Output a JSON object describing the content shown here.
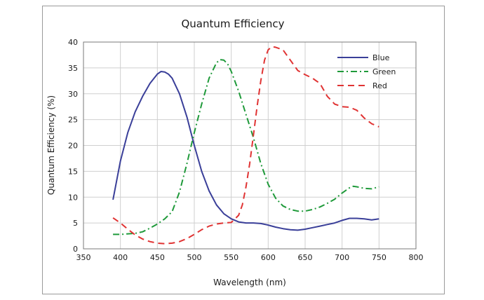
{
  "chart_data": {
    "type": "line",
    "title": "Quantum Efficiency",
    "xlabel": "Wavelength (nm)",
    "ylabel": "Quantum Efficiency (%)",
    "xlim": [
      350,
      800
    ],
    "ylim": [
      0,
      40
    ],
    "xticks": [
      350,
      400,
      450,
      500,
      550,
      600,
      650,
      700,
      750,
      800
    ],
    "yticks": [
      0,
      5,
      10,
      15,
      20,
      25,
      30,
      35,
      40
    ],
    "grid": true,
    "legend_position": "top-right",
    "series": [
      {
        "name": "Blue",
        "color": "#3a3f99",
        "dash": "solid",
        "x": [
          390,
          400,
          410,
          420,
          430,
          440,
          450,
          455,
          460,
          465,
          470,
          480,
          490,
          500,
          510,
          520,
          530,
          540,
          550,
          560,
          570,
          580,
          590,
          600,
          610,
          620,
          630,
          640,
          650,
          660,
          670,
          680,
          690,
          700,
          710,
          720,
          730,
          740,
          750
        ],
        "y": [
          9.5,
          17,
          22.5,
          26.5,
          29.5,
          32,
          33.8,
          34.3,
          34.2,
          33.8,
          33,
          30,
          25.5,
          20,
          15,
          11.2,
          8.5,
          6.8,
          5.8,
          5.2,
          5.0,
          5.0,
          4.9,
          4.6,
          4.2,
          3.9,
          3.7,
          3.6,
          3.8,
          4.1,
          4.4,
          4.7,
          5.0,
          5.5,
          5.9,
          5.9,
          5.8,
          5.6,
          5.8
        ]
      },
      {
        "name": "Green",
        "color": "#1f9a3a",
        "dash": "dashdot",
        "x": [
          390,
          400,
          410,
          420,
          430,
          440,
          450,
          460,
          470,
          480,
          490,
          500,
          510,
          520,
          530,
          535,
          540,
          545,
          550,
          560,
          570,
          580,
          590,
          600,
          610,
          620,
          630,
          640,
          650,
          660,
          670,
          680,
          690,
          700,
          710,
          715,
          720,
          730,
          740,
          750
        ],
        "y": [
          2.8,
          2.8,
          2.9,
          3.0,
          3.3,
          4.0,
          4.8,
          5.8,
          7.2,
          11,
          16.5,
          22.5,
          28,
          33,
          36,
          36.6,
          36.5,
          35.8,
          34.3,
          30.5,
          26,
          21.5,
          16.5,
          12.5,
          9.8,
          8.3,
          7.6,
          7.3,
          7.3,
          7.6,
          8.1,
          8.8,
          9.6,
          10.8,
          11.8,
          12.1,
          12.0,
          11.7,
          11.6,
          12.0
        ]
      },
      {
        "name": "Red",
        "color": "#e03333",
        "dash": "dash",
        "x": [
          390,
          400,
          410,
          420,
          430,
          440,
          450,
          460,
          470,
          480,
          490,
          500,
          510,
          520,
          530,
          540,
          550,
          560,
          565,
          570,
          575,
          580,
          585,
          590,
          595,
          600,
          605,
          610,
          620,
          630,
          640,
          650,
          660,
          670,
          680,
          690,
          700,
          710,
          720,
          730,
          740,
          750
        ],
        "y": [
          6.0,
          5.0,
          3.8,
          2.7,
          1.9,
          1.4,
          1.1,
          1.0,
          1.1,
          1.4,
          2.0,
          2.8,
          3.7,
          4.4,
          4.8,
          5.0,
          5.1,
          6.5,
          8.5,
          12,
          16.5,
          22,
          27.5,
          32.5,
          36.5,
          38.5,
          39.1,
          39.0,
          38.5,
          36.5,
          34.5,
          33.7,
          33.0,
          32,
          29.5,
          28.0,
          27.5,
          27.4,
          26.8,
          25.3,
          24.2,
          23.6
        ]
      }
    ]
  }
}
